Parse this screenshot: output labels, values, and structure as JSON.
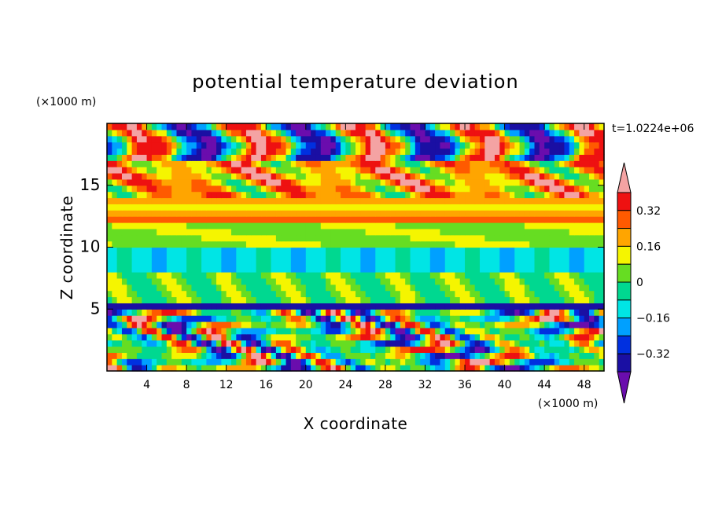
{
  "chart_data": {
    "type": "heatmap",
    "title": "potential temperature deviation",
    "xlabel": "X coordinate",
    "ylabel": "Z coordinate",
    "x_unit": "(×1000 m)",
    "y_unit": "(×1000 m)",
    "time_label": "t=1.0224e+06",
    "xlim": [
      0,
      50
    ],
    "ylim": [
      0,
      20
    ],
    "xticks": [
      4,
      8,
      12,
      16,
      20,
      24,
      28,
      32,
      36,
      40,
      44,
      48
    ],
    "yticks": [
      5,
      10,
      15
    ],
    "colorbar": {
      "levels": [
        -0.4,
        -0.32,
        -0.24,
        -0.16,
        -0.08,
        0,
        0.08,
        0.16,
        0.24,
        0.32,
        0.4
      ],
      "labels": [
        "0.32",
        "0.16",
        "0",
        "−0.16",
        "−0.32"
      ],
      "label_values": [
        0.32,
        0.16,
        0,
        -0.16,
        -0.32
      ],
      "colors": [
        "#6a0dad",
        "#1a0fa3",
        "#0030e0",
        "#00a0ff",
        "#00e5e5",
        "#00d890",
        "#66dd22",
        "#f5f500",
        "#ffa500",
        "#ff5a00",
        "#ee1111",
        "#f4a3a3"
      ],
      "extends": "both"
    }
  }
}
